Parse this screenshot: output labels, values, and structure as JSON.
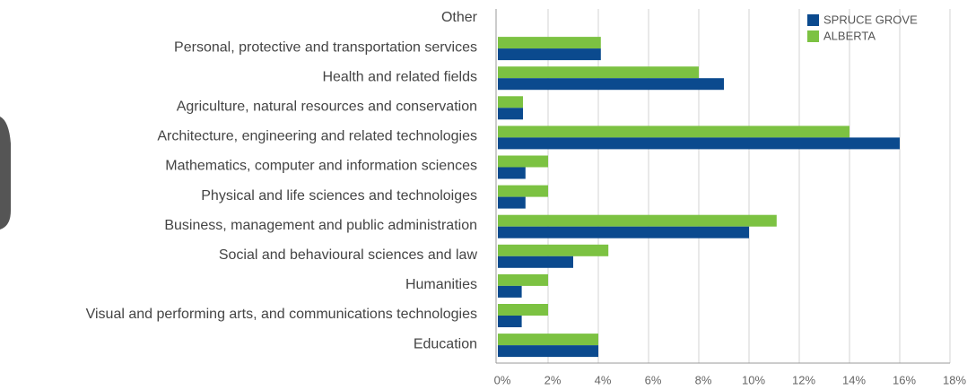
{
  "chart_data": {
    "type": "hbar",
    "categories": [
      "Other",
      "Personal, protective and transportation services",
      "Health and related fields",
      "Agriculture, natural resources and conservation",
      "Architecture, engineering and related technologies",
      "Mathematics, computer and information sciences",
      "Physical and life sciences and technoloiges",
      "Business, management and public administration",
      "Social and behavioural sciences and law",
      "Humanities",
      "Visual and performing arts, and communications technologies",
      "Education"
    ],
    "series": [
      {
        "name": "SPRUCE GROVE",
        "color": "#0b4a8e",
        "values": [
          0,
          4.1,
          9,
          1,
          16,
          1.1,
          1.1,
          10,
          3,
          0.95,
          0.95,
          4
        ]
      },
      {
        "name": "ALBERTA",
        "color": "#7cc242",
        "values": [
          0,
          4.1,
          8,
          1,
          14,
          2,
          2,
          11.1,
          4.4,
          2,
          2,
          4
        ]
      }
    ],
    "xlim": [
      0,
      18
    ],
    "xticks": [
      {
        "value": 0,
        "label": "0%"
      },
      {
        "value": 2,
        "label": "2%"
      },
      {
        "value": 4,
        "label": "4%"
      },
      {
        "value": 6,
        "label": "6%"
      },
      {
        "value": 8,
        "label": "8%"
      },
      {
        "value": 10,
        "label": "10%"
      },
      {
        "value": 12,
        "label": "12%"
      },
      {
        "value": 14,
        "label": "14%"
      },
      {
        "value": 16,
        "label": "16%"
      },
      {
        "value": 18,
        "label": "18%"
      }
    ],
    "grid": true,
    "legend": "top-right"
  }
}
